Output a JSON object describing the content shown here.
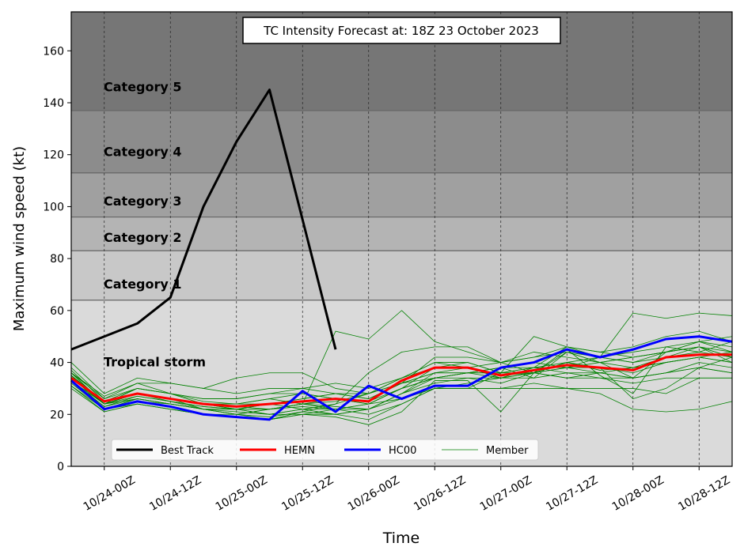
{
  "chart_data": {
    "type": "line",
    "title": "TC Intensity Forecast at: 18Z 23 October 2023",
    "xlabel": "Time",
    "ylabel": "Maximum wind speed (kt)",
    "ylim": [
      0,
      175
    ],
    "yticks": [
      0,
      20,
      40,
      60,
      80,
      100,
      120,
      140,
      160
    ],
    "x_start": "10/23-18Z",
    "x_step_hours": 6,
    "xlim": [
      "10/23-18Z",
      "10/28-18Z"
    ],
    "xticks": [
      "10/24-00Z",
      "10/24-12Z",
      "10/25-00Z",
      "10/25-12Z",
      "10/26-00Z",
      "10/26-12Z",
      "10/27-00Z",
      "10/27-12Z",
      "10/28-00Z",
      "10/28-12Z"
    ],
    "grid": "vertical dashed at ticks",
    "legend_position": "lower-left",
    "categories_bands": [
      {
        "label": "Tropical storm",
        "from": 0,
        "to": 64,
        "label_at": 40,
        "color": "#dadada"
      },
      {
        "label": "Category 1",
        "from": 64,
        "to": 83,
        "label_at": 70,
        "color": "#c8c8c8"
      },
      {
        "label": "Category 2",
        "from": 83,
        "to": 96,
        "label_at": 88,
        "color": "#b4b4b4"
      },
      {
        "label": "Category 3",
        "from": 96,
        "to": 113,
        "label_at": 102,
        "color": "#a0a0a0"
      },
      {
        "label": "Category 4",
        "from": 113,
        "to": 137,
        "label_at": 121,
        "color": "#8c8c8c"
      },
      {
        "label": "Category 5",
        "from": 137,
        "to": 175,
        "label_at": 146,
        "color": "#767676"
      }
    ],
    "series": [
      {
        "name": "Best Track",
        "color": "#000000",
        "width": 3,
        "values": [
          45,
          50,
          55,
          65,
          100,
          125,
          145,
          95,
          45
        ]
      },
      {
        "name": "HEMN",
        "color": "#ff0000",
        "width": 3,
        "values": [
          34,
          25,
          28,
          26,
          24,
          23,
          24,
          25,
          26,
          25,
          33,
          38,
          38,
          35,
          37,
          39,
          38,
          37,
          42,
          43,
          43
        ]
      },
      {
        "name": "HC00",
        "color": "#0000ff",
        "width": 3,
        "values": [
          33,
          22,
          25,
          23,
          20,
          19,
          18,
          29,
          21,
          31,
          26,
          31,
          31,
          38,
          40,
          45,
          42,
          45,
          49,
          50,
          48
        ]
      },
      {
        "name": "Member",
        "color": "#008000",
        "width": 0.8,
        "members": [
          [
            36,
            24,
            30,
            28,
            25,
            24,
            26,
            24,
            22,
            24,
            30,
            38,
            40,
            36,
            38,
            40,
            37,
            38,
            42,
            44,
            42
          ],
          [
            38,
            26,
            32,
            28,
            24,
            22,
            20,
            22,
            24,
            28,
            34,
            40,
            38,
            35,
            36,
            38,
            40,
            38,
            40,
            42,
            44
          ],
          [
            32,
            22,
            26,
            24,
            22,
            22,
            24,
            26,
            28,
            26,
            32,
            36,
            36,
            34,
            36,
            40,
            38,
            36,
            40,
            42,
            40
          ],
          [
            34,
            25,
            28,
            25,
            22,
            20,
            22,
            24,
            52,
            49,
            60,
            48,
            44,
            40,
            42,
            44,
            42,
            44,
            46,
            48,
            44
          ],
          [
            30,
            21,
            24,
            22,
            20,
            19,
            18,
            21,
            24,
            36,
            44,
            46,
            46,
            40,
            42,
            46,
            44,
            46,
            50,
            52,
            48
          ],
          [
            36,
            24,
            28,
            26,
            22,
            20,
            22,
            24,
            26,
            24,
            30,
            34,
            36,
            38,
            40,
            38,
            42,
            59,
            57,
            59,
            58
          ],
          [
            40,
            28,
            34,
            32,
            30,
            34,
            36,
            36,
            30,
            28,
            32,
            42,
            42,
            40,
            44,
            42,
            40,
            42,
            44,
            46,
            40
          ],
          [
            35,
            24,
            28,
            26,
            24,
            22,
            20,
            20,
            22,
            22,
            28,
            36,
            36,
            38,
            34,
            36,
            34,
            34,
            36,
            38,
            36
          ],
          [
            33,
            23,
            27,
            25,
            23,
            22,
            22,
            23,
            22,
            24,
            30,
            34,
            36,
            36,
            36,
            44,
            40,
            42,
            44,
            46,
            42
          ],
          [
            31,
            22,
            25,
            24,
            22,
            20,
            19,
            21,
            20,
            22,
            28,
            32,
            34,
            32,
            36,
            38,
            36,
            38,
            40,
            42,
            40
          ],
          [
            37,
            25,
            30,
            28,
            26,
            26,
            28,
            28,
            26,
            24,
            26,
            30,
            30,
            30,
            32,
            30,
            30,
            30,
            28,
            34,
            34
          ],
          [
            36,
            26,
            30,
            28,
            26,
            26,
            28,
            30,
            32,
            30,
            34,
            38,
            38,
            34,
            36,
            34,
            36,
            34,
            36,
            40,
            38
          ],
          [
            34,
            24,
            28,
            26,
            24,
            24,
            26,
            28,
            26,
            25,
            30,
            34,
            36,
            36,
            50,
            46,
            42,
            40,
            44,
            46,
            44
          ],
          [
            35,
            22,
            24,
            22,
            20,
            20,
            18,
            20,
            19,
            16,
            21,
            33,
            33,
            21,
            36,
            45,
            35,
            28,
            46,
            44,
            48
          ],
          [
            33,
            23,
            26,
            24,
            22,
            21,
            20,
            22,
            22,
            20,
            24,
            30,
            32,
            34,
            34,
            44,
            40,
            34,
            44,
            48,
            46
          ],
          [
            31,
            21,
            24,
            22,
            20,
            19,
            18,
            20,
            20,
            18,
            24,
            30,
            30,
            36,
            38,
            38,
            38,
            26,
            30,
            38,
            42
          ],
          [
            34,
            25,
            28,
            26,
            24,
            24,
            24,
            26,
            28,
            26,
            32,
            34,
            34,
            34,
            38,
            36,
            36,
            34,
            36,
            38,
            36
          ],
          [
            33,
            24,
            26,
            24,
            22,
            22,
            24,
            22,
            20,
            22,
            28,
            34,
            36,
            38,
            38,
            46,
            44,
            42,
            44,
            48,
            50
          ],
          [
            35,
            25,
            28,
            26,
            24,
            23,
            22,
            24,
            23,
            22,
            26,
            30,
            30,
            30,
            30,
            30,
            28,
            22,
            21,
            22,
            25
          ],
          [
            34,
            24,
            27,
            25,
            23,
            22,
            22,
            24,
            25,
            28,
            34,
            40,
            40,
            36,
            36,
            34,
            34,
            32,
            34,
            34,
            34
          ],
          [
            36,
            27,
            32,
            32,
            30,
            28,
            30,
            30,
            28,
            28,
            32,
            36,
            38,
            40,
            36,
            40,
            42,
            40,
            42,
            46,
            42
          ]
        ]
      }
    ]
  }
}
